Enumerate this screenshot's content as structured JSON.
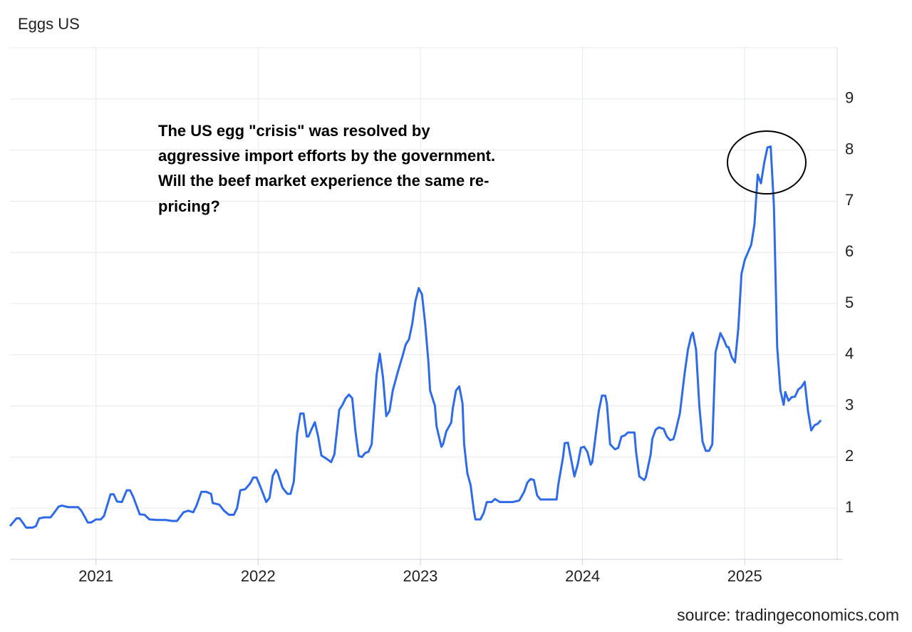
{
  "chart_data": {
    "type": "line",
    "title": "Eggs US",
    "source": "source: tradingeconomics.com",
    "annotation": [
      "The US egg \"crisis\" was resolved by",
      "aggressive import efforts by the government.",
      "Will the beef market experience the same re-",
      "pricing?"
    ],
    "x": [
      2020.47,
      2020.51,
      2020.53,
      2020.57,
      2020.61,
      2020.63,
      2020.65,
      2020.68,
      2020.72,
      2020.74,
      2020.77,
      2020.79,
      2020.83,
      2020.89,
      2020.91,
      2020.95,
      2020.97,
      2021.0,
      2021.03,
      2021.05,
      2021.09,
      2021.11,
      2021.13,
      2021.16,
      2021.19,
      2021.21,
      2021.23,
      2021.27,
      2021.3,
      2021.33,
      2021.38,
      2021.43,
      2021.47,
      2021.5,
      2021.54,
      2021.57,
      2021.6,
      2021.62,
      2021.65,
      2021.68,
      2021.71,
      2021.72,
      2021.76,
      2021.79,
      2021.82,
      2021.85,
      2021.87,
      2021.89,
      2021.92,
      2021.95,
      2021.97,
      2021.99,
      2022.01,
      2022.05,
      2022.07,
      2022.09,
      2022.11,
      2022.12,
      2022.15,
      2022.18,
      2022.2,
      2022.22,
      2022.24,
      2022.26,
      2022.28,
      2022.3,
      2022.31,
      2022.33,
      2022.35,
      2022.37,
      2022.39,
      2022.42,
      2022.45,
      2022.47,
      2022.5,
      2022.52,
      2022.54,
      2022.56,
      2022.58,
      2022.6,
      2022.62,
      2022.64,
      2022.66,
      2022.68,
      2022.7,
      2022.73,
      2022.75,
      2022.77,
      2022.79,
      2022.81,
      2022.83,
      2022.86,
      2022.89,
      2022.91,
      2022.93,
      2022.95,
      2022.97,
      2022.99,
      2023.01,
      2023.03,
      2023.05,
      2023.06,
      2023.09,
      2023.1,
      2023.13,
      2023.14,
      2023.16,
      2023.19,
      2023.2,
      2023.22,
      2023.24,
      2023.26,
      2023.27,
      2023.29,
      2023.31,
      2023.33,
      2023.34,
      2023.37,
      2023.39,
      2023.41,
      2023.44,
      2023.46,
      2023.49,
      2023.57,
      2023.61,
      2023.64,
      2023.66,
      2023.68,
      2023.7,
      2023.72,
      2023.74,
      2023.84,
      2023.85,
      2023.88,
      2023.89,
      2023.91,
      2023.93,
      2023.95,
      2023.97,
      2023.99,
      2024.01,
      2024.03,
      2024.05,
      2024.06,
      2024.08,
      2024.1,
      2024.12,
      2024.14,
      2024.15,
      2024.17,
      2024.2,
      2024.22,
      2024.24,
      2024.26,
      2024.28,
      2024.32,
      2024.33,
      2024.35,
      2024.38,
      2024.39,
      2024.42,
      2024.43,
      2024.45,
      2024.47,
      2024.5,
      2024.52,
      2024.54,
      2024.56,
      2024.57,
      2024.6,
      2024.63,
      2024.65,
      2024.67,
      2024.68,
      2024.7,
      2024.72,
      2024.74,
      2024.76,
      2024.78,
      2024.8,
      2024.82,
      2024.85,
      2024.87,
      2024.89,
      2024.9,
      2024.92,
      2024.94,
      2024.96,
      2024.98,
      2025.0,
      2025.02,
      2025.04,
      2025.06,
      2025.08,
      2025.1,
      2025.12,
      2025.14,
      2025.16,
      2025.18,
      2025.2,
      2025.22,
      2025.24,
      2025.25,
      2025.27,
      2025.29,
      2025.31,
      2025.33,
      2025.35,
      2025.37,
      2025.39,
      2025.41,
      2025.43,
      2025.45,
      2025.47
    ],
    "series": [
      {
        "color": "#2f6be8",
        "values": [
          0.65,
          0.8,
          0.8,
          0.62,
          0.62,
          0.65,
          0.8,
          0.82,
          0.82,
          0.9,
          1.03,
          1.05,
          1.02,
          1.02,
          0.95,
          0.72,
          0.72,
          0.78,
          0.78,
          0.85,
          1.27,
          1.27,
          1.13,
          1.12,
          1.35,
          1.35,
          1.22,
          0.88,
          0.87,
          0.78,
          0.77,
          0.77,
          0.75,
          0.75,
          0.92,
          0.95,
          0.92,
          1.05,
          1.32,
          1.32,
          1.28,
          1.1,
          1.07,
          0.95,
          0.87,
          0.87,
          1.0,
          1.35,
          1.37,
          1.48,
          1.6,
          1.6,
          1.45,
          1.12,
          1.2,
          1.63,
          1.75,
          1.7,
          1.4,
          1.28,
          1.28,
          1.52,
          2.45,
          2.85,
          2.85,
          2.4,
          2.4,
          2.55,
          2.68,
          2.4,
          2.03,
          1.97,
          1.9,
          2.05,
          2.92,
          3.02,
          3.15,
          3.22,
          3.15,
          2.5,
          2.02,
          2.0,
          2.08,
          2.1,
          2.25,
          3.6,
          4.02,
          3.55,
          2.8,
          2.9,
          3.3,
          3.65,
          3.97,
          4.2,
          4.3,
          4.6,
          5.05,
          5.3,
          5.18,
          4.6,
          3.85,
          3.3,
          3.0,
          2.6,
          2.2,
          2.25,
          2.5,
          2.67,
          2.95,
          3.3,
          3.38,
          3.05,
          2.25,
          1.68,
          1.45,
          0.95,
          0.78,
          0.78,
          0.9,
          1.12,
          1.12,
          1.18,
          1.12,
          1.12,
          1.15,
          1.32,
          1.5,
          1.57,
          1.55,
          1.25,
          1.17,
          1.17,
          1.45,
          2.0,
          2.27,
          2.28,
          1.95,
          1.62,
          1.85,
          2.18,
          2.2,
          2.1,
          1.85,
          1.9,
          2.4,
          2.9,
          3.2,
          3.2,
          3.05,
          2.25,
          2.15,
          2.18,
          2.4,
          2.42,
          2.48,
          2.48,
          2.1,
          1.62,
          1.55,
          1.6,
          2.05,
          2.35,
          2.53,
          2.58,
          2.55,
          2.4,
          2.33,
          2.35,
          2.45,
          2.85,
          3.65,
          4.1,
          4.38,
          4.43,
          4.1,
          3.0,
          2.3,
          2.12,
          2.12,
          2.25,
          4.05,
          4.42,
          4.3,
          4.15,
          4.15,
          3.95,
          3.85,
          4.5,
          5.58,
          5.85,
          6.0,
          6.15,
          6.55,
          7.52,
          7.35,
          7.75,
          8.05,
          8.07,
          6.9,
          4.15,
          3.3,
          3.02,
          3.27,
          3.1,
          3.17,
          3.18,
          3.32,
          3.37,
          3.47,
          2.9,
          2.52,
          2.62,
          2.65,
          2.72
        ]
      }
    ],
    "xlim": [
      2020.47,
      2025.57
    ],
    "xticks": [
      2021,
      2022,
      2023,
      2024,
      2025
    ],
    "ylim": [
      0,
      10
    ],
    "yticks": [
      1,
      2,
      3,
      4,
      5,
      6,
      7,
      8,
      9
    ],
    "grid": true
  }
}
